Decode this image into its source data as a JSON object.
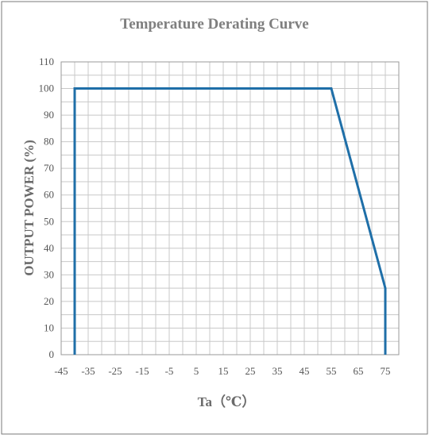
{
  "chart_data": {
    "type": "line",
    "title": "Temperature Derating Curve",
    "xlabel": "Ta（℃）",
    "ylabel": "OUTPUT POWER (%)",
    "xlim": [
      -45,
      80
    ],
    "ylim": [
      0,
      110
    ],
    "x_ticks": [
      -45,
      -35,
      -25,
      -15,
      -5,
      5,
      15,
      25,
      35,
      45,
      55,
      65,
      75
    ],
    "y_ticks": [
      0,
      10,
      20,
      30,
      40,
      50,
      60,
      70,
      80,
      90,
      100,
      110
    ],
    "x_grid_step": 5,
    "y_grid_step": 5,
    "grid": true,
    "series": [
      {
        "color": "#1f6fa8",
        "x": [
          -40,
          -40,
          55,
          75,
          75
        ],
        "y": [
          0,
          100,
          100,
          25,
          0
        ]
      }
    ]
  },
  "colors": {
    "frame": "#7a7a7a",
    "grid": "#c8c8c8",
    "line": "#1f6fa8"
  }
}
